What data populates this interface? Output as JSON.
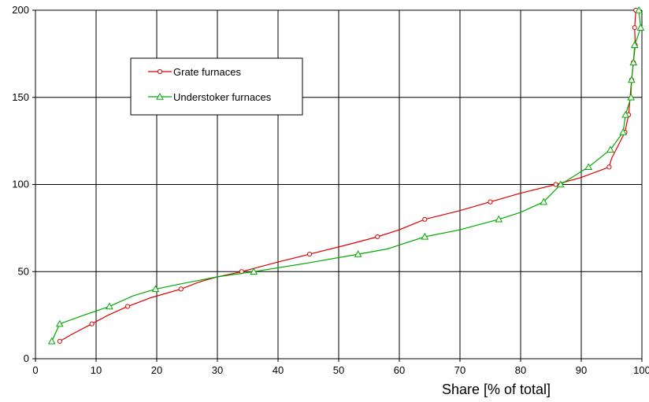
{
  "chart_data": {
    "type": "line",
    "title": "",
    "xlabel": "Share  [% of total]",
    "ylabel": "",
    "xlim": [
      0,
      100
    ],
    "ylim": [
      0,
      200
    ],
    "x_ticks": [
      0,
      10,
      20,
      30,
      40,
      50,
      60,
      70,
      80,
      90,
      100
    ],
    "y_ticks": [
      0,
      50,
      100,
      150,
      200
    ],
    "grid": true,
    "legend_position": "top-left",
    "series": [
      {
        "name": "Grate furnaces",
        "color": "#dd0000",
        "marker": "circle",
        "points": [
          [
            4,
            10
          ],
          [
            9.3,
            20
          ],
          [
            15.2,
            30
          ],
          [
            24,
            40
          ],
          [
            34,
            50
          ],
          [
            45.2,
            60
          ],
          [
            56.4,
            70
          ],
          [
            64.2,
            80
          ],
          [
            75,
            90
          ],
          [
            85.8,
            100
          ],
          [
            94.6,
            110
          ],
          [
            97.2,
            130
          ],
          [
            97.8,
            140
          ],
          [
            98.3,
            160
          ],
          [
            98.6,
            170
          ],
          [
            98.9,
            180
          ],
          [
            98.8,
            190
          ],
          [
            99,
            200
          ]
        ],
        "curve": [
          [
            4,
            10
          ],
          [
            6,
            14
          ],
          [
            9.3,
            20
          ],
          [
            12,
            25
          ],
          [
            15.2,
            30
          ],
          [
            19,
            35
          ],
          [
            24,
            40
          ],
          [
            27,
            44
          ],
          [
            30,
            47
          ],
          [
            34,
            50
          ],
          [
            40,
            55.5
          ],
          [
            45.2,
            60
          ],
          [
            51,
            65
          ],
          [
            56.4,
            70
          ],
          [
            60,
            74
          ],
          [
            64.2,
            80
          ],
          [
            70,
            85
          ],
          [
            75,
            90
          ],
          [
            80,
            95
          ],
          [
            85.8,
            100
          ],
          [
            90,
            104
          ],
          [
            94.6,
            110
          ],
          [
            95,
            115
          ],
          [
            97.2,
            130
          ],
          [
            97.8,
            140
          ],
          [
            98.3,
            160
          ],
          [
            98.6,
            170
          ],
          [
            98.9,
            180
          ],
          [
            98.8,
            190
          ],
          [
            99,
            200
          ]
        ]
      },
      {
        "name": "Understoker furnaces",
        "color": "#00aa00",
        "marker": "triangle",
        "points": [
          [
            2.7,
            10
          ],
          [
            4,
            20
          ],
          [
            12.2,
            30
          ],
          [
            19.8,
            40
          ],
          [
            36,
            50
          ],
          [
            53.2,
            60
          ],
          [
            64.2,
            70
          ],
          [
            76.4,
            80
          ],
          [
            83.8,
            90
          ],
          [
            86.6,
            100
          ],
          [
            91.2,
            110
          ],
          [
            94.8,
            120
          ],
          [
            96.9,
            130
          ],
          [
            97.3,
            140
          ],
          [
            98.2,
            150
          ],
          [
            98.3,
            160
          ],
          [
            98.6,
            170
          ],
          [
            98.8,
            180
          ],
          [
            99.8,
            190
          ],
          [
            99.5,
            200
          ]
        ],
        "curve": [
          [
            2.7,
            10
          ],
          [
            4,
            20
          ],
          [
            8,
            25
          ],
          [
            12.2,
            30
          ],
          [
            16,
            36
          ],
          [
            19.8,
            40
          ],
          [
            24,
            43
          ],
          [
            30,
            47
          ],
          [
            36,
            50
          ],
          [
            45,
            55
          ],
          [
            53.2,
            60
          ],
          [
            58,
            63
          ],
          [
            64.2,
            70
          ],
          [
            70,
            74
          ],
          [
            76.4,
            80
          ],
          [
            80,
            84
          ],
          [
            83.8,
            90
          ],
          [
            86.6,
            100
          ],
          [
            91.2,
            110
          ],
          [
            94.8,
            120
          ],
          [
            96.9,
            130
          ],
          [
            97.3,
            140
          ],
          [
            98.2,
            150
          ],
          [
            98.3,
            160
          ],
          [
            98.6,
            170
          ],
          [
            98.8,
            180
          ],
          [
            99.8,
            190
          ],
          [
            99.5,
            200
          ]
        ]
      }
    ]
  }
}
